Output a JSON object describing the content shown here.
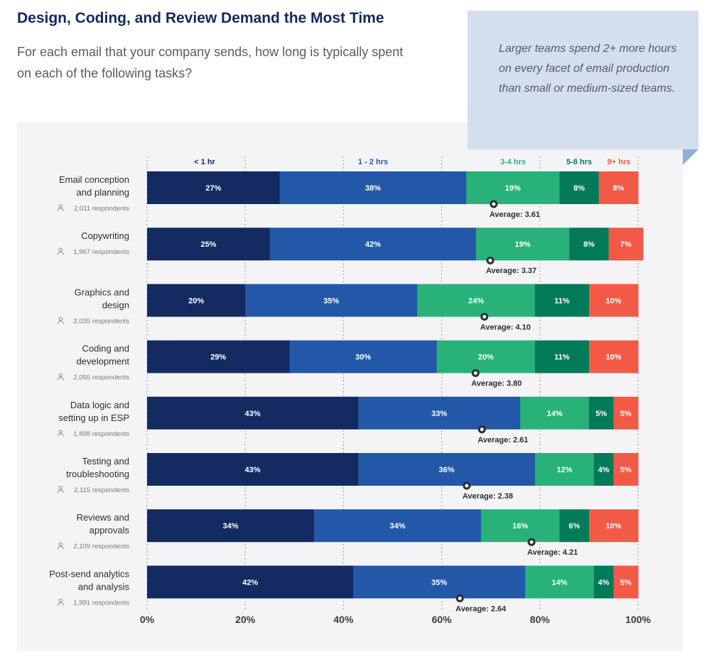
{
  "header": {
    "title": "Design, Coding, and Review Demand the Most Time",
    "subtitle": "For each email that your company sends, how long is typically spent on each of the following tasks?"
  },
  "callout": {
    "text": "Larger teams spend 2+ more hours on every facet of email production than small or medium-sized teams."
  },
  "chart_data": {
    "type": "bar",
    "orientation": "horizontal",
    "stacked": true,
    "categories": [
      "< 1 hr",
      "1 - 2 hrs",
      "3-4 hrs",
      "5-8 hrs",
      "9+ hrs"
    ],
    "colors": [
      "#132b61",
      "#2358a8",
      "#28b27a",
      "#007a59",
      "#f25a47"
    ],
    "xlim": [
      0,
      100
    ],
    "ticks": [
      "0%",
      "20%",
      "40%",
      "60%",
      "80%",
      "100%"
    ],
    "grid": "vertical dashed",
    "legend": "top",
    "rows": [
      {
        "label": [
          "Email conception",
          "and planning"
        ],
        "respondents": "2,011 respondents",
        "values": [
          27,
          38,
          19,
          8,
          8
        ],
        "average": "Average: 3.61",
        "marker_pct": 70.6
      },
      {
        "label": [
          "Copywriting"
        ],
        "respondents": "1,967 respondents",
        "values": [
          25,
          42,
          19,
          8,
          7
        ],
        "average": "Average: 3.37",
        "marker_pct": 69.9
      },
      {
        "label": [
          "Graphics and",
          "design"
        ],
        "respondents": "2,035 respondents",
        "values": [
          20,
          35,
          24,
          11,
          10
        ],
        "average": "Average: 4.10",
        "marker_pct": 68.7
      },
      {
        "label": [
          "Coding and",
          "development"
        ],
        "respondents": "2,056 respondents",
        "values": [
          29,
          30,
          20,
          11,
          10
        ],
        "average": "Average: 3.80",
        "marker_pct": 66.9
      },
      {
        "label": [
          "Data logic and",
          "setting up in ESP"
        ],
        "respondents": "1,898 respondents",
        "values": [
          43,
          33,
          14,
          5,
          5
        ],
        "average": "Average: 2.61",
        "marker_pct": 68.2
      },
      {
        "label": [
          "Testing and",
          "troubleshooting"
        ],
        "respondents": "2,115 respondents",
        "values": [
          43,
          36,
          12,
          4,
          5
        ],
        "average": "Average: 2.38",
        "marker_pct": 65.1
      },
      {
        "label": [
          "Reviews and",
          "approvals"
        ],
        "respondents": "2,109 respondents",
        "values": [
          34,
          34,
          16,
          6,
          10
        ],
        "average": "Average: 4.21",
        "marker_pct": 78.3
      },
      {
        "label": [
          "Post-send analytics",
          "and analysis"
        ],
        "respondents": "1,991 respondents",
        "values": [
          42,
          35,
          14,
          4,
          5
        ],
        "average": "Average: 2.64",
        "marker_pct": 63.7
      }
    ]
  }
}
